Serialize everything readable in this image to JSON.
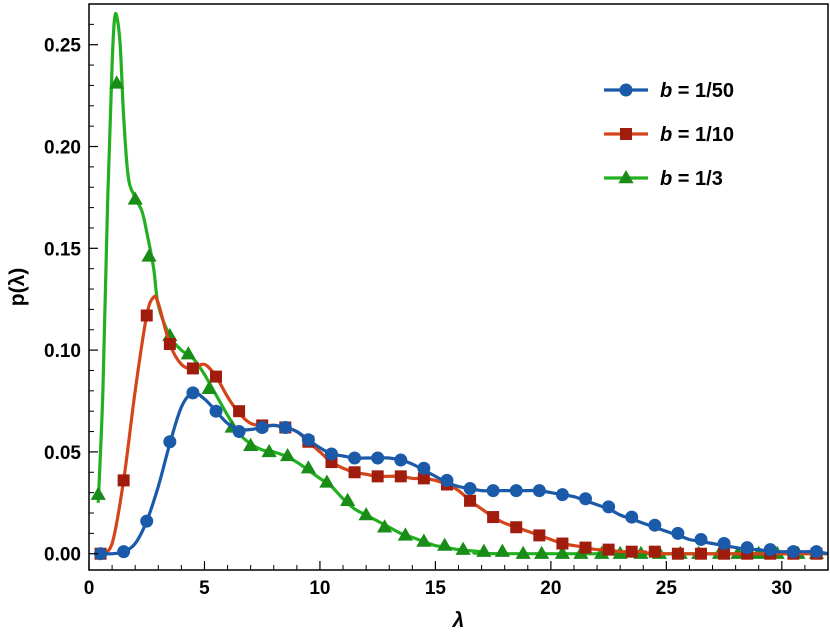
{
  "chart_data": {
    "type": "line",
    "xlabel": "λ",
    "ylabel": "p(λ)",
    "xlim": [
      0,
      32
    ],
    "ylim": [
      -0.008,
      0.27
    ],
    "x_ticks": [
      0,
      5,
      10,
      15,
      20,
      25,
      30
    ],
    "x_tick_labels": [
      "0",
      "5",
      "10",
      "15",
      "20",
      "25",
      "30"
    ],
    "y_ticks": [
      0.0,
      0.05,
      0.1,
      0.15,
      0.2,
      0.25
    ],
    "y_tick_labels": [
      "0.00",
      "0.05",
      "0.10",
      "0.15",
      "0.20",
      "0.25"
    ],
    "grid": false,
    "legend_position": "top-right",
    "series": [
      {
        "name": "b = 1/50",
        "legend_italic": "b",
        "legend_rest": " = 1/50",
        "color": "#1a5aa8",
        "marker": "circle",
        "curve": [
          [
            0.5,
            0
          ],
          [
            1.0,
            0
          ],
          [
            1.5,
            0.001
          ],
          [
            2.0,
            0.005
          ],
          [
            2.5,
            0.016
          ],
          [
            3.0,
            0.033
          ],
          [
            3.5,
            0.054
          ],
          [
            4.0,
            0.072
          ],
          [
            4.5,
            0.079
          ],
          [
            5.0,
            0.076
          ],
          [
            5.5,
            0.07
          ],
          [
            6.0,
            0.064
          ],
          [
            6.5,
            0.061
          ],
          [
            7.0,
            0.061
          ],
          [
            7.5,
            0.062
          ],
          [
            8.0,
            0.063
          ],
          [
            8.5,
            0.062
          ],
          [
            9.0,
            0.06
          ],
          [
            9.5,
            0.056
          ],
          [
            10.0,
            0.052
          ],
          [
            10.5,
            0.049
          ],
          [
            11.0,
            0.048
          ],
          [
            11.5,
            0.047
          ],
          [
            12.0,
            0.047
          ],
          [
            12.5,
            0.047
          ],
          [
            13.0,
            0.047
          ],
          [
            13.5,
            0.046
          ],
          [
            14.0,
            0.044
          ],
          [
            14.5,
            0.041
          ],
          [
            15.0,
            0.038
          ],
          [
            15.5,
            0.035
          ],
          [
            16.0,
            0.033
          ],
          [
            16.5,
            0.032
          ],
          [
            17.0,
            0.031
          ],
          [
            17.5,
            0.031
          ],
          [
            18.0,
            0.031
          ],
          [
            18.5,
            0.031
          ],
          [
            19.0,
            0.031
          ],
          [
            19.5,
            0.031
          ],
          [
            20.0,
            0.03
          ],
          [
            20.5,
            0.029
          ],
          [
            21.0,
            0.028
          ],
          [
            21.5,
            0.026
          ],
          [
            22.0,
            0.024
          ],
          [
            22.5,
            0.022
          ],
          [
            23.0,
            0.019
          ],
          [
            23.5,
            0.017
          ],
          [
            24.0,
            0.015
          ],
          [
            24.5,
            0.013
          ],
          [
            25.0,
            0.011
          ],
          [
            25.5,
            0.009
          ],
          [
            26.0,
            0.007
          ],
          [
            26.5,
            0.006
          ],
          [
            27.0,
            0.005
          ],
          [
            27.5,
            0.004
          ],
          [
            28.0,
            0.003
          ],
          [
            28.5,
            0.002
          ],
          [
            29.0,
            0.002
          ],
          [
            29.5,
            0.001
          ],
          [
            30.0,
            0.001
          ],
          [
            30.5,
            0.001
          ],
          [
            31.0,
            0.001
          ],
          [
            31.5,
            0.001
          ],
          [
            32.0,
            0
          ]
        ],
        "points": [
          [
            0.5,
            0
          ],
          [
            1.5,
            0.001
          ],
          [
            2.5,
            0.016
          ],
          [
            3.5,
            0.055
          ],
          [
            4.5,
            0.079
          ],
          [
            5.5,
            0.07
          ],
          [
            6.5,
            0.06
          ],
          [
            7.5,
            0.062
          ],
          [
            8.5,
            0.062
          ],
          [
            9.5,
            0.056
          ],
          [
            10.5,
            0.049
          ],
          [
            11.5,
            0.047
          ],
          [
            12.5,
            0.047
          ],
          [
            13.5,
            0.046
          ],
          [
            14.5,
            0.042
          ],
          [
            15.5,
            0.036
          ],
          [
            16.5,
            0.032
          ],
          [
            17.5,
            0.031
          ],
          [
            18.5,
            0.031
          ],
          [
            19.5,
            0.031
          ],
          [
            20.5,
            0.029
          ],
          [
            21.5,
            0.027
          ],
          [
            22.5,
            0.023
          ],
          [
            23.5,
            0.018
          ],
          [
            24.5,
            0.014
          ],
          [
            25.5,
            0.01
          ],
          [
            26.5,
            0.007
          ],
          [
            27.5,
            0.005
          ],
          [
            28.5,
            0.003
          ],
          [
            29.5,
            0.002
          ],
          [
            30.5,
            0.001
          ],
          [
            31.5,
            0.001
          ]
        ]
      },
      {
        "name": "b = 1/10",
        "legend_italic": "b",
        "legend_rest": " = 1/10",
        "color": "#d4461a",
        "marker_color": "#a01c0c",
        "marker": "square",
        "curve": [
          [
            0.5,
            0
          ],
          [
            1.0,
            0.005
          ],
          [
            1.5,
            0.036
          ],
          [
            2.0,
            0.08
          ],
          [
            2.5,
            0.117
          ],
          [
            2.8,
            0.126
          ],
          [
            3.0,
            0.123
          ],
          [
            3.5,
            0.103
          ],
          [
            4.0,
            0.093
          ],
          [
            4.5,
            0.091
          ],
          [
            5.0,
            0.093
          ],
          [
            5.5,
            0.087
          ],
          [
            6.0,
            0.077
          ],
          [
            6.5,
            0.069
          ],
          [
            7.0,
            0.064
          ],
          [
            7.5,
            0.063
          ],
          [
            8.0,
            0.063
          ],
          [
            8.5,
            0.062
          ],
          [
            9.0,
            0.06
          ],
          [
            9.5,
            0.055
          ],
          [
            10.0,
            0.05
          ],
          [
            10.5,
            0.045
          ],
          [
            11.0,
            0.042
          ],
          [
            11.5,
            0.04
          ],
          [
            12.0,
            0.039
          ],
          [
            12.5,
            0.038
          ],
          [
            13.0,
            0.038
          ],
          [
            13.5,
            0.038
          ],
          [
            14.0,
            0.037
          ],
          [
            14.5,
            0.037
          ],
          [
            15.0,
            0.036
          ],
          [
            15.5,
            0.034
          ],
          [
            16.0,
            0.031
          ],
          [
            16.5,
            0.026
          ],
          [
            17.0,
            0.022
          ],
          [
            17.5,
            0.018
          ],
          [
            18.0,
            0.015
          ],
          [
            18.5,
            0.013
          ],
          [
            19.0,
            0.011
          ],
          [
            19.5,
            0.009
          ],
          [
            20.0,
            0.007
          ],
          [
            20.5,
            0.005
          ],
          [
            21.0,
            0.004
          ],
          [
            21.5,
            0.003
          ],
          [
            22.0,
            0.002
          ],
          [
            22.5,
            0.002
          ],
          [
            23.0,
            0.001
          ],
          [
            24.0,
            0.001
          ],
          [
            25.0,
            0
          ],
          [
            32.0,
            0
          ]
        ],
        "points": [
          [
            0.5,
            0
          ],
          [
            1.5,
            0.036
          ],
          [
            2.5,
            0.117
          ],
          [
            3.5,
            0.103
          ],
          [
            4.5,
            0.091
          ],
          [
            5.5,
            0.087
          ],
          [
            6.5,
            0.07
          ],
          [
            7.5,
            0.063
          ],
          [
            8.5,
            0.062
          ],
          [
            9.5,
            0.055
          ],
          [
            10.5,
            0.045
          ],
          [
            11.5,
            0.04
          ],
          [
            12.5,
            0.038
          ],
          [
            13.5,
            0.038
          ],
          [
            14.5,
            0.037
          ],
          [
            15.5,
            0.034
          ],
          [
            16.5,
            0.026
          ],
          [
            17.5,
            0.018
          ],
          [
            18.5,
            0.013
          ],
          [
            19.5,
            0.009
          ],
          [
            20.5,
            0.005
          ],
          [
            21.5,
            0.003
          ],
          [
            22.5,
            0.002
          ],
          [
            23.5,
            0.001
          ],
          [
            24.5,
            0.001
          ],
          [
            25.5,
            0
          ],
          [
            26.5,
            0
          ],
          [
            27.5,
            0
          ],
          [
            28.5,
            0
          ],
          [
            29.5,
            0
          ],
          [
            30.5,
            0
          ],
          [
            31.5,
            0
          ]
        ]
      },
      {
        "name": "b = 1/3",
        "legend_italic": "b",
        "legend_rest": " = 1/3",
        "color": "#23b020",
        "marker_color": "#1a8c18",
        "marker": "triangle",
        "curve": [
          [
            0.4,
            0.025
          ],
          [
            0.6,
            0.08
          ],
          [
            0.8,
            0.17
          ],
          [
            1.0,
            0.24
          ],
          [
            1.1,
            0.262
          ],
          [
            1.2,
            0.264
          ],
          [
            1.35,
            0.25
          ],
          [
            1.5,
            0.215
          ],
          [
            1.7,
            0.185
          ],
          [
            2.0,
            0.175
          ],
          [
            2.3,
            0.168
          ],
          [
            2.5,
            0.158
          ],
          [
            2.8,
            0.14
          ],
          [
            3.0,
            0.122
          ],
          [
            3.5,
            0.107
          ],
          [
            4.0,
            0.1
          ],
          [
            4.5,
            0.096
          ],
          [
            5.0,
            0.088
          ],
          [
            5.5,
            0.078
          ],
          [
            6.0,
            0.068
          ],
          [
            6.5,
            0.059
          ],
          [
            7.0,
            0.054
          ],
          [
            7.5,
            0.051
          ],
          [
            8.0,
            0.05
          ],
          [
            8.5,
            0.048
          ],
          [
            9.0,
            0.045
          ],
          [
            9.5,
            0.041
          ],
          [
            10.0,
            0.037
          ],
          [
            10.5,
            0.033
          ],
          [
            11.0,
            0.027
          ],
          [
            11.5,
            0.022
          ],
          [
            12.0,
            0.019
          ],
          [
            12.5,
            0.016
          ],
          [
            13.0,
            0.013
          ],
          [
            13.5,
            0.01
          ],
          [
            14.0,
            0.008
          ],
          [
            14.5,
            0.006
          ],
          [
            15.0,
            0.004
          ],
          [
            15.5,
            0.003
          ],
          [
            16.0,
            0.002
          ],
          [
            17.0,
            0.001
          ],
          [
            18.0,
            0
          ],
          [
            32.0,
            0
          ]
        ],
        "points": [
          [
            0.4,
            0.029
          ],
          [
            1.2,
            0.231
          ],
          [
            2.0,
            0.174
          ],
          [
            2.6,
            0.146
          ],
          [
            3.5,
            0.107
          ],
          [
            4.3,
            0.098
          ],
          [
            5.2,
            0.081
          ],
          [
            6.2,
            0.062
          ],
          [
            7.0,
            0.053
          ],
          [
            7.8,
            0.05
          ],
          [
            8.6,
            0.048
          ],
          [
            9.5,
            0.042
          ],
          [
            10.3,
            0.035
          ],
          [
            11.2,
            0.026
          ],
          [
            12.0,
            0.019
          ],
          [
            12.8,
            0.013
          ],
          [
            13.7,
            0.009
          ],
          [
            14.5,
            0.006
          ],
          [
            15.4,
            0.004
          ],
          [
            16.2,
            0.002
          ],
          [
            17.1,
            0.001
          ],
          [
            17.9,
            0.001
          ],
          [
            18.8,
            0
          ],
          [
            19.6,
            0
          ],
          [
            20.5,
            0
          ],
          [
            21.3,
            0
          ],
          [
            22.2,
            0
          ],
          [
            23.0,
            0
          ],
          [
            23.9,
            0
          ],
          [
            24.7,
            0
          ],
          [
            25.6,
            0
          ],
          [
            26.4,
            0
          ],
          [
            27.3,
            0
          ],
          [
            28.1,
            0
          ],
          [
            29.0,
            0
          ],
          [
            29.8,
            0
          ],
          [
            30.7,
            0
          ],
          [
            31.5,
            0
          ]
        ]
      }
    ]
  }
}
